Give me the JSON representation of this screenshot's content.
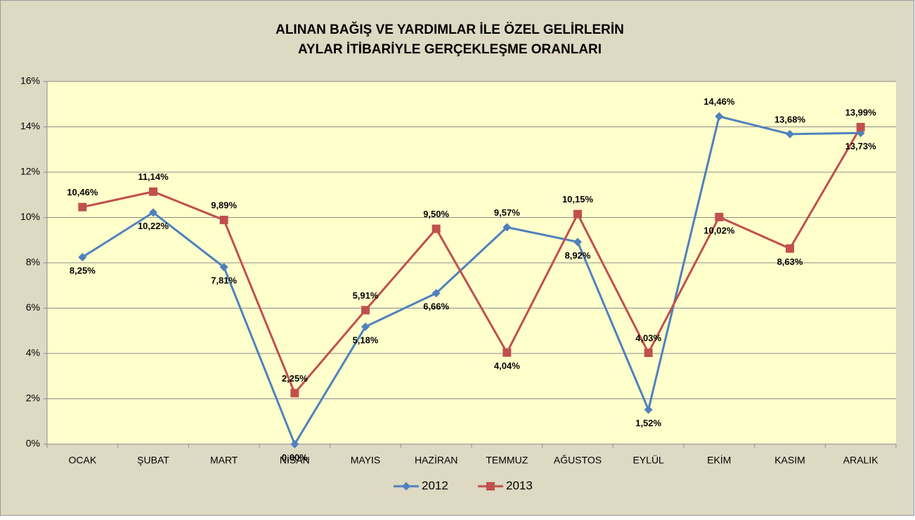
{
  "chart_data": {
    "type": "line",
    "title": [
      "ALINAN BAĞIŞ VE YARDIMLAR İLE ÖZEL GELİRLERİN",
      "AYLAR İTİBARİYLE GERÇEKLEŞME ORANLARI"
    ],
    "categories": [
      "OCAK",
      "ŞUBAT",
      "MART",
      "NİSAN",
      "MAYIS",
      "HAZİRAN",
      "TEMMUZ",
      "AĞUSTOS",
      "EYLÜL",
      "EKİM",
      "KASIM",
      "ARALIK"
    ],
    "series": [
      {
        "name": "2012",
        "color": "#4f81bd",
        "marker": "diamond",
        "values": [
          8.25,
          10.22,
          7.81,
          0.0,
          5.18,
          6.66,
          9.57,
          8.92,
          1.52,
          14.46,
          13.68,
          13.73
        ],
        "value_labels": [
          "8,25%",
          "10,22%",
          "7,81%",
          "0,00%",
          "5,18%",
          "6,66%",
          "9,57%",
          "8,92%",
          "1,52%",
          "14,46%",
          "13,68%",
          "13,73%"
        ]
      },
      {
        "name": "2013",
        "color": "#c0504d",
        "marker": "square",
        "values": [
          10.46,
          11.14,
          9.89,
          2.25,
          5.91,
          9.5,
          4.04,
          10.15,
          4.03,
          10.02,
          8.63,
          13.99
        ],
        "value_labels": [
          "10,46%",
          "11,14%",
          "9,89%",
          "2,25%",
          "5,91%",
          "9,50%",
          "4,04%",
          "10,15%",
          "4,03%",
          "10,02%",
          "8,63%",
          "13,99%"
        ]
      }
    ],
    "ylim": [
      0,
      16
    ],
    "yticks": [
      {
        "value": 0,
        "label": "0%"
      },
      {
        "value": 2,
        "label": "2%"
      },
      {
        "value": 4,
        "label": "4%"
      },
      {
        "value": 6,
        "label": "6%"
      },
      {
        "value": 8,
        "label": "8%"
      },
      {
        "value": 10,
        "label": "10%"
      },
      {
        "value": 12,
        "label": "12%"
      },
      {
        "value": 14,
        "label": "14%"
      },
      {
        "value": 16,
        "label": "16%"
      }
    ],
    "grid": true,
    "legend": "bottom"
  }
}
